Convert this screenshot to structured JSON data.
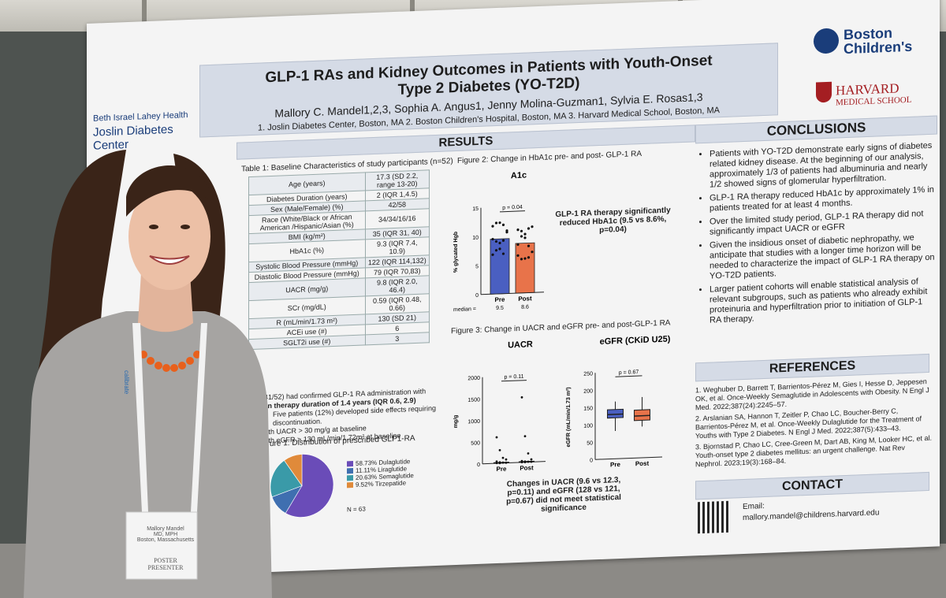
{
  "poster": {
    "title_line1": "GLP-1 RAs and Kidney Outcomes in Patients with Youth-Onset",
    "title_line2": "Type 2 Diabetes (YO-T2D)",
    "authors": "Mallory C. Mandel1,2,3, Sophia A. Angus1, Jenny Molina-Guzman1, Sylvia E. Rosas1,3",
    "affiliations": "1. Joslin Diabetes Center, Boston, MA  2. Boston Children's Hospital, Boston, MA 3. Harvard Medical School, Boston, MA",
    "logos": {
      "bilh": "Beth Israel Lahey Health",
      "joslin": "Joslin Diabetes Center",
      "bch": "Boston Children's",
      "harvard": "HARVARD",
      "hms": "MEDICAL SCHOOL"
    },
    "sections": {
      "results": "RESULTS",
      "conclusions": "CONCLUSIONS",
      "references": "REFERENCES",
      "contact": "CONTACT"
    },
    "table1": {
      "caption": "Table 1: Baseline Characteristics of study participants (n=52)",
      "rows": [
        [
          "Age (years)",
          "17.3 (SD 2.2, range 13-20)"
        ],
        [
          "Diabetes Duration (years)",
          "2 (IQR 1,4.5)"
        ],
        [
          "Sex (Male/Female) (%)",
          "42/58"
        ],
        [
          "Race (White/Black or African American /Hispanic/Asian (%)",
          "34/34/16/16"
        ],
        [
          "BMI (kg/m²)",
          "35 (IQR 31, 40)"
        ],
        [
          "HbA1c (%)",
          "9.3 (IQR 7.4, 10.9)"
        ],
        [
          "Systolic Blood Pressure (mmHg)",
          "122 (IQR 114,132)"
        ],
        [
          "Diastolic Blood Pressure (mmHg)",
          "79 (IQR 70,83)"
        ],
        [
          "UACR (mg/g)",
          "9.8 (IQR 2.0, 46.4)"
        ],
        [
          "SCr (mg/dL)",
          "0.59 (IQR 0.48, 0.66)"
        ],
        [
          "R (mL/min/1.73 m²)",
          "130 (SD 21)"
        ],
        [
          "ACEi use (#)",
          "6"
        ],
        [
          "SGLT2i use (#)",
          "3"
        ]
      ]
    },
    "lower_text": {
      "line1": "(41/52) had confirmed GLP-1 RA administration with",
      "line2": "ian therapy duration of 1.4 years (IQR 0.6, 2.9)",
      "b1": "Five patients (12%) developed side effects requiring discontinuation.",
      "b2": "with UACR > 30 mg/g at baseline",
      "b3": "with eGFR > 130 mL/min/1.72m² at baseline"
    },
    "fig1": {
      "caption": "ure 1: Distribution of prescribed GLP1-RA",
      "n_label": "N = 63"
    },
    "fig2": {
      "caption": "Figure 2: Change in HbA1c pre- and post- GLP-1 RA",
      "note": "GLP-1 RA therapy significantly reduced HbA1c (9.5 vs 8.6%, p=0.04)"
    },
    "fig3": {
      "caption": "Figure 3: Change in UACR and eGFR pre- and post-GLP-1 RA",
      "note": "Changes in UACR (9.6 vs 12.3, p=0.11) and eGFR (128 vs 121, p=0.67) did not meet statistical significance"
    },
    "conclusions": [
      "Patients with YO-T2D demonstrate early signs of diabetes related kidney disease. At the beginning of our analysis, approximately 1/3 of patients had albuminuria and nearly 1/2 showed signs of glomerular hyperfiltration.",
      "GLP-1 RA therapy reduced HbA1c by approximately 1% in patients treated for at least 4 months.",
      "Over the limited study period, GLP-1 RA therapy did not significantly impact UACR or eGFR",
      "Given the insidious onset of diabetic nephropathy, we anticipate that studies with a longer time horizon will be needed to characterize the impact of GLP-1 RA therapy on YO-T2D patients.",
      "Larger patient cohorts will enable statistical analysis of relevant subgroups, such as patients who already exhibit proteinuria and hyperfiltration prior to initiation of GLP-1 RA therapy."
    ],
    "references": [
      "1. Weghuber D, Barrett T, Barrientos-Pérez M, Gies I, Hesse D, Jeppesen OK, et al. Once-Weekly Semaglutide in Adolescents with Obesity. N Engl J Med. 2022;387(24):2245–57.",
      "2. Arslanian SA, Hannon T, Zeitler P, Chao LC, Boucher-Berry C, Barrientos-Pérez M, et al. Once-Weekly Dulaglutide for the Treatment of Youths with Type 2 Diabetes. N Engl J Med. 2022;387(5):433–43.",
      "3. Bjornstad P, Chao LC, Cree-Green M, Dart AB, King M, Looker HC, et al. Youth-onset type 2 diabetes mellitus: an urgent challenge. Nat Rev Nephrol. 2023;19(3):168–84."
    ],
    "contact": {
      "email_label": "Email:",
      "email": "mallory.mandel@childrens.harvard.edu"
    }
  },
  "badge": {
    "name": "Mallory Mandel",
    "creds": "MD, MPH",
    "city": "Boston, Massachusetts",
    "role_line1": "POSTER",
    "role_line2": "PRESENTER",
    "lanyard": "calibrate"
  },
  "chart_data": [
    {
      "type": "bar",
      "title": "A1c",
      "ylabel": "% glycated Hgb",
      "categories": [
        "Pre",
        "Post"
      ],
      "values": [
        9.5,
        8.6
      ],
      "median_label": "median =",
      "median_values": [
        "9.5",
        "8.6"
      ],
      "pvalue": "p = 0.04",
      "ylim": [
        0,
        15
      ],
      "yticks": [
        "0",
        "5",
        "10",
        "15"
      ],
      "colors": [
        "#4a5fc1",
        "#e8734a"
      ]
    },
    {
      "type": "scatter",
      "title": "UACR",
      "ylabel": "mg/g",
      "categories": [
        "Pre",
        "Post"
      ],
      "median_label": "median =",
      "median_values": [
        "9.6",
        "12.3"
      ],
      "pvalue": "p = 0.11",
      "ylim": [
        0,
        2000
      ],
      "yticks": [
        "0",
        "500",
        "1000",
        "1500",
        "2000"
      ]
    },
    {
      "type": "box",
      "title": "eGFR (CKiD U25)",
      "ylabel": "eGFR (mL/min/1.73 m²)",
      "categories": [
        "Pre",
        "Post"
      ],
      "median_label": "median =",
      "median_values": [
        "128",
        "121"
      ],
      "pvalue": "p = 0.67",
      "ylim": [
        0,
        250
      ],
      "yticks": [
        "0",
        "50",
        "100",
        "150",
        "200",
        "250"
      ],
      "colors": [
        "#4a5fc1",
        "#e8734a"
      ]
    },
    {
      "type": "pie",
      "labels": [
        "58.73% Dulaglutide",
        "11.11% Liraglutide",
        "20.63% Semaglutide",
        "9.52% Tirzepatide"
      ],
      "values": [
        58.73,
        11.11,
        20.63,
        9.52
      ],
      "colors": [
        "#6a4cb8",
        "#3f6fb0",
        "#3a9aa8",
        "#e08a3a"
      ]
    }
  ]
}
